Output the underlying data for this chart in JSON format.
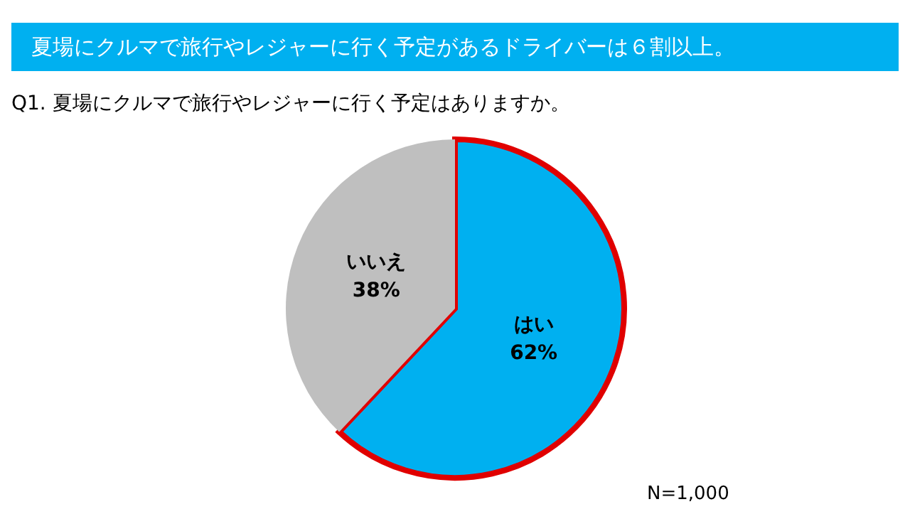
{
  "chart_data": {
    "type": "pie",
    "title": "夏場にクルマで旅行やレジャーに行く予定があるドライバーは６割以上。",
    "subtitle": "Q1. 夏場にクルマで旅行やレジャーに行く予定はありますか。",
    "categories": [
      "はい",
      "いいえ"
    ],
    "values": [
      62,
      38
    ],
    "value_labels": [
      "62%",
      "38%"
    ],
    "colors": [
      "#00b0f0",
      "#bfbfbf"
    ],
    "legend": false,
    "annotations": [
      "N=1,000"
    ]
  }
}
